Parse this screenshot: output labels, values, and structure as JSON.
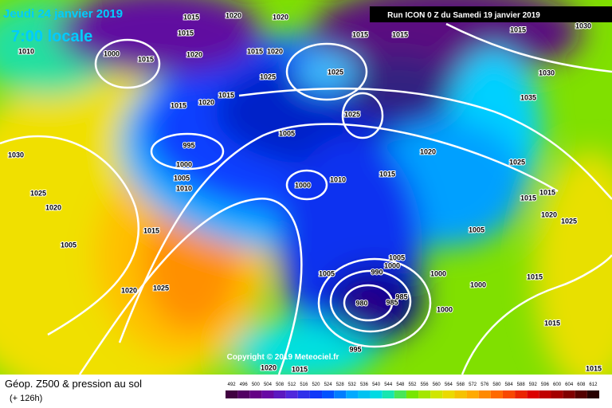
{
  "header": {
    "date": "Jeudi 24 janvier 2019",
    "time": "7:00 locale",
    "run": "Run ICON 0 Z du Samedi 19 janvier 2019"
  },
  "isobar_labels": [
    1015,
    1020,
    1020,
    1015,
    1015,
    1015,
    1015,
    1030,
    1010,
    1000,
    1015,
    1020,
    1015,
    1020,
    1025,
    1025,
    1030,
    1015,
    1020,
    1015,
    1035,
    1025,
    1005,
    995,
    1020,
    1030,
    1000,
    1005,
    1010,
    1010,
    1015,
    1025,
    1000,
    1025,
    1015,
    1015,
    1020,
    1020,
    1025,
    1015,
    1005,
    1005,
    1005,
    1000,
    990,
    1005,
    1000,
    1015,
    1000,
    1020,
    1025,
    980,
    985,
    985,
    1000,
    995,
    1015,
    1020,
    1015,
    1015
  ],
  "copyright": "Copyright © 2019 Meteociel.fr",
  "legend": {
    "title": "Géop. Z500 & pression au sol",
    "lead": "(+ 126h)",
    "colorbar_ticks": [
      492,
      496,
      500,
      504,
      508,
      512,
      516,
      520,
      524,
      528,
      532,
      536,
      540,
      544,
      548,
      552,
      556,
      560,
      564,
      568,
      572,
      576,
      580,
      584,
      588,
      592,
      596,
      600,
      604,
      608,
      612
    ]
  }
}
